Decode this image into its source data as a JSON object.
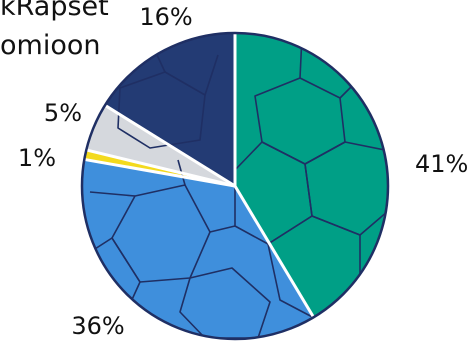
{
  "chart_data": {
    "type": "pie",
    "title_lines": [
      "kRapset",
      "omioon"
    ],
    "slices": [
      {
        "label": "41%",
        "value": 41,
        "color": "#009f86"
      },
      {
        "label": "36%",
        "value": 36,
        "color": "#3f8fdc"
      },
      {
        "label": "1%",
        "value": 1,
        "color": "#f3da1e"
      },
      {
        "label": "5%",
        "value": 5,
        "color": "#d5d8dd"
      },
      {
        "label": "16%",
        "value": 16,
        "color": "#233b74"
      }
    ],
    "separator_color": "#ffffff",
    "pattern_color": "#1f2f64"
  }
}
